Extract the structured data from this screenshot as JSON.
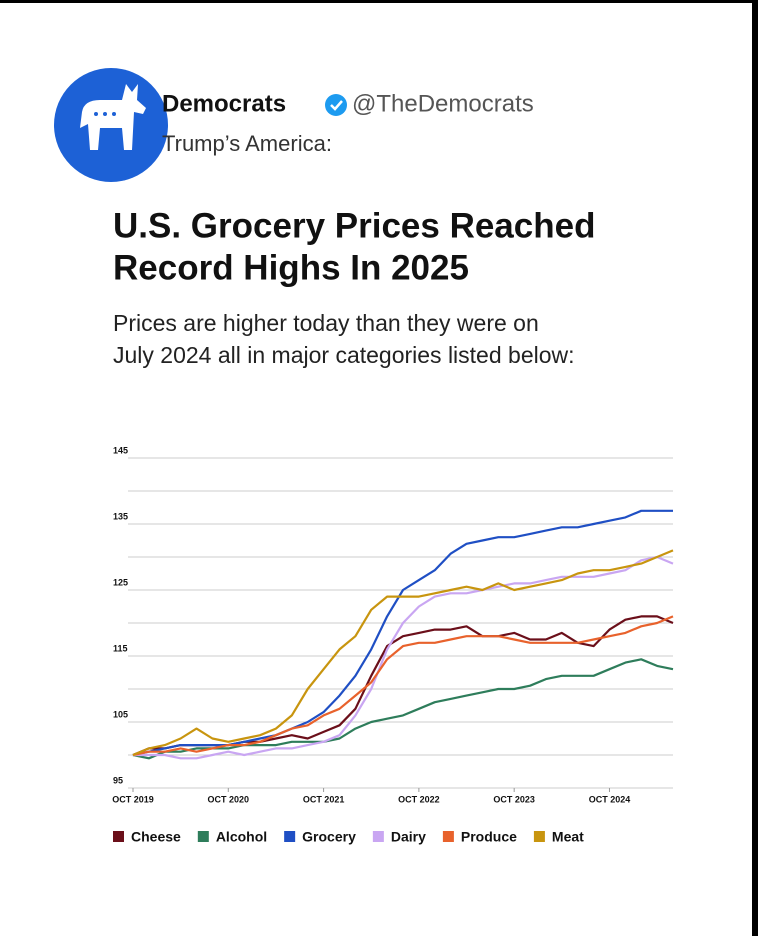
{
  "post": {
    "name": "Democrats",
    "handle": "@TheDemocrats",
    "text": "Trump’s America:",
    "headline": [
      "U.S. Grocery Prices Reached",
      "Record Highs In 2025"
    ],
    "subheadline": [
      "Prices are higher today than they were on",
      "July 2024 all in major categories listed below:"
    ]
  },
  "chart_data": {
    "type": "line",
    "x": [
      "2019-10",
      "2019-12",
      "2020-02",
      "2020-04",
      "2020-06",
      "2020-08",
      "2020-10",
      "2020-12",
      "2021-02",
      "2021-04",
      "2021-06",
      "2021-08",
      "2021-10",
      "2021-12",
      "2022-02",
      "2022-04",
      "2022-06",
      "2022-08",
      "2022-10",
      "2022-12",
      "2023-02",
      "2023-04",
      "2023-06",
      "2023-08",
      "2023-10",
      "2023-12",
      "2024-02",
      "2024-04",
      "2024-06",
      "2024-08",
      "2024-10",
      "2024-12",
      "2025-02",
      "2025-04",
      "2025-06"
    ],
    "xlim": [
      "2019-10",
      "2025-06"
    ],
    "xticks": [
      {
        "value": "2019-10",
        "label": "OCT 2019"
      },
      {
        "value": "2020-10",
        "label": "OCT 2020"
      },
      {
        "value": "2021-10",
        "label": "OCT 2021"
      },
      {
        "value": "2022-10",
        "label": "OCT 2022"
      },
      {
        "value": "2023-10",
        "label": "OCT 2023"
      },
      {
        "value": "2024-10",
        "label": "OCT 2024"
      }
    ],
    "ylim": [
      95,
      145
    ],
    "yticks": [
      95,
      105,
      115,
      125,
      135,
      145
    ],
    "minor_yticks": [
      100,
      110,
      120,
      130,
      140
    ],
    "grid": true,
    "series": [
      {
        "name": "Cheese",
        "color": "#6b0f1a",
        "values": [
          100,
          101,
          101,
          101.5,
          101.5,
          101.5,
          101.5,
          102,
          102,
          102.5,
          103,
          102.5,
          103.5,
          104.5,
          107,
          112,
          116.5,
          118,
          118.5,
          119,
          119,
          119.5,
          118,
          118,
          118.5,
          117.5,
          117.5,
          118.5,
          117,
          116.5,
          119,
          120.5,
          121,
          121,
          120
        ]
      },
      {
        "name": "Alcohol",
        "color": "#2e7d5b",
        "values": [
          100,
          99.5,
          100.5,
          100.5,
          101,
          101,
          101,
          101.5,
          101.5,
          101.5,
          102,
          102,
          102,
          102.5,
          104,
          105,
          105.5,
          106,
          107,
          108,
          108.5,
          109,
          109.5,
          110,
          110,
          110.5,
          111.5,
          112,
          112,
          112,
          113,
          114,
          114.5,
          113.5,
          113
        ]
      },
      {
        "name": "Grocery",
        "color": "#1f4fc4",
        "values": [
          100,
          100.5,
          101,
          101.5,
          101.5,
          101.5,
          101.5,
          102,
          102.5,
          103,
          104,
          105,
          106.5,
          109,
          112,
          116,
          121,
          125,
          126.5,
          128,
          130.5,
          132,
          132.5,
          133,
          133,
          133.5,
          134,
          134.5,
          134.5,
          135,
          135.5,
          136,
          137,
          137,
          137
        ]
      },
      {
        "name": "Dairy",
        "color": "#c9a6f2",
        "values": [
          100,
          100,
          100,
          99.5,
          99.5,
          100,
          100.5,
          100,
          100.5,
          101,
          101,
          101.5,
          102,
          103,
          106,
          110,
          116,
          120,
          122.5,
          124,
          124.5,
          124.5,
          125,
          125.5,
          126,
          126,
          126.5,
          127,
          127,
          127,
          127.5,
          128,
          129.5,
          130,
          129
        ]
      },
      {
        "name": "Produce",
        "color": "#e8622c",
        "values": [
          100,
          100.5,
          100.5,
          101,
          100.5,
          101,
          101.5,
          101.5,
          102,
          103,
          104,
          104.5,
          106,
          107,
          109,
          111,
          114.5,
          116.5,
          117,
          117,
          117.5,
          118,
          118,
          118,
          117.5,
          117,
          117,
          117,
          117,
          117.5,
          118,
          118.5,
          119.5,
          120,
          121
        ]
      },
      {
        "name": "Meat",
        "color": "#c8950f",
        "values": [
          100,
          101,
          101.5,
          102.5,
          104,
          102.5,
          102,
          102.5,
          103,
          104,
          106,
          110,
          113,
          116,
          118,
          122,
          124,
          124,
          124,
          124.5,
          125,
          125.5,
          125,
          126,
          125,
          125.5,
          126,
          126.5,
          127.5,
          128,
          128,
          128.5,
          129,
          130,
          131
        ]
      }
    ]
  }
}
